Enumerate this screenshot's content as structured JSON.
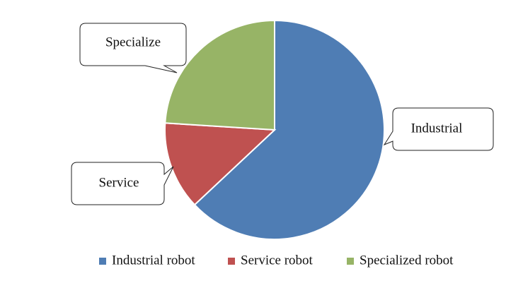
{
  "chart_data": {
    "type": "pie",
    "categories": [
      "Industrial robot",
      "Service robot",
      "Specialized robot"
    ],
    "values": [
      63,
      13,
      24
    ],
    "colors": [
      "#4f7db4",
      "#bf5150",
      "#97b466"
    ],
    "data_labels": [
      "Industrial",
      "Service",
      "Specialize"
    ],
    "legend": "bottom"
  }
}
